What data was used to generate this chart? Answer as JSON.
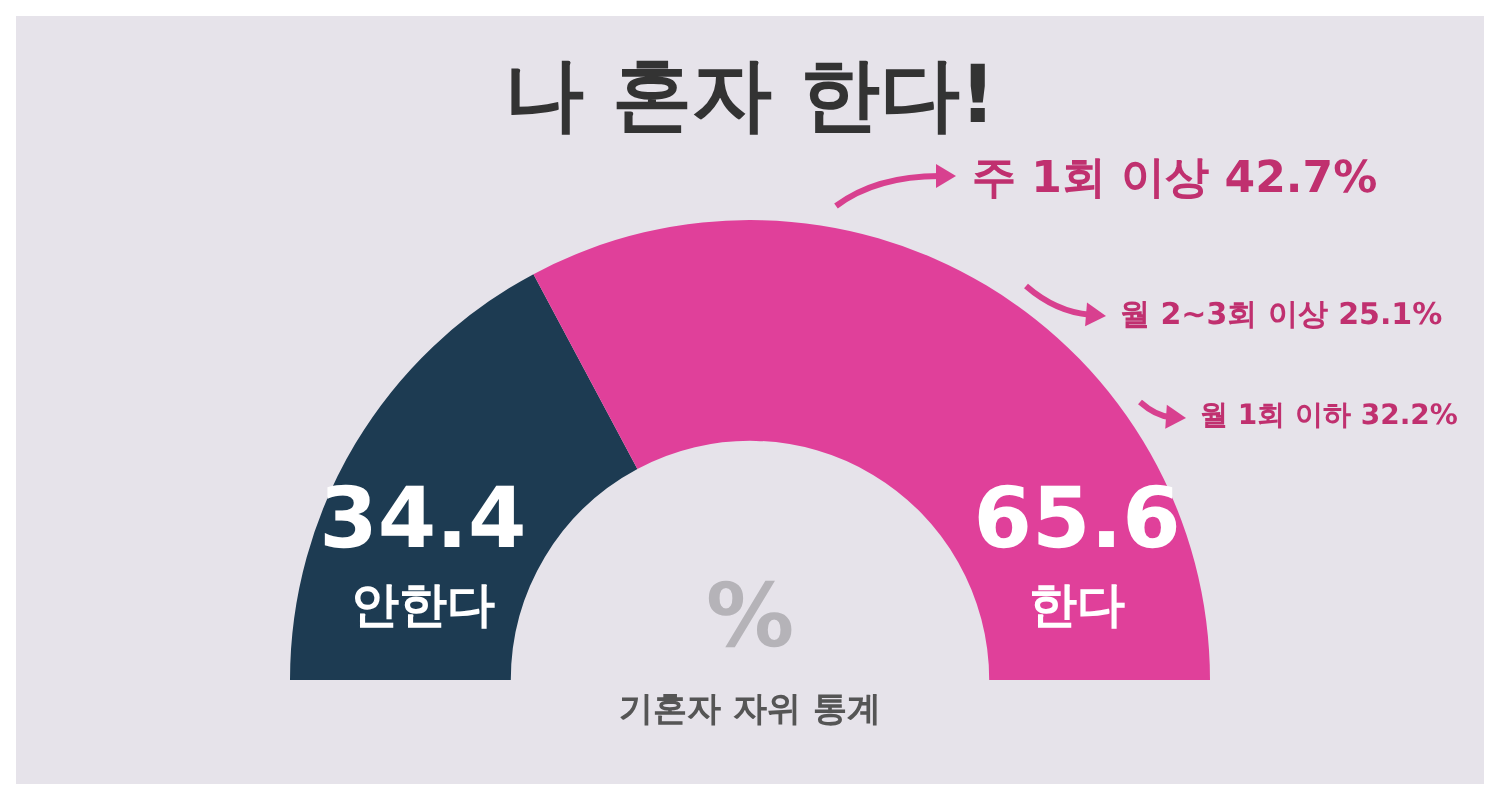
{
  "chart_data": {
    "type": "donut",
    "title": "나 혼자 한다!",
    "categories": [
      "안한다",
      "한다"
    ],
    "values": [
      34.4,
      65.6
    ],
    "colors": [
      "#1d3b52",
      "#e0409a"
    ],
    "data_labels": true,
    "annotations": [
      "주 1회 이상 42.7%",
      "월 2~3회 이상 25.1%",
      "월 1회 이하 32.2%",
      "%",
      "기혼자 자위 통계"
    ]
  }
}
